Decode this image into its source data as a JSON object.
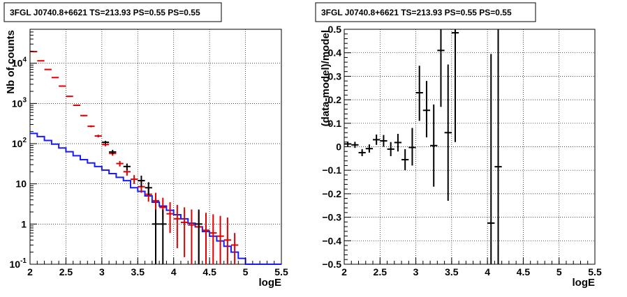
{
  "chart_data": [
    {
      "type": "step-histogram-with-errorbars",
      "title": "3FGL J0740.8+6621 TS=213.93 PS=0.55 PS=0.55",
      "xlabel": "logE",
      "ylabel": "Nb of counts",
      "xlim": [
        2,
        5.5
      ],
      "ylim": [
        0.1,
        70000
      ],
      "yscale": "log",
      "grid": true,
      "x_ticks": [
        "2",
        "2.5",
        "3",
        "3.5",
        "4",
        "4.5",
        "5",
        "5.5"
      ],
      "y_ticks": [
        {
          "v": 0.1,
          "label": "10",
          "exp": "-1"
        },
        {
          "v": 1,
          "label": "1",
          "exp": ""
        },
        {
          "v": 10,
          "label": "10",
          "exp": ""
        },
        {
          "v": 100,
          "label": "10",
          "exp": "2"
        },
        {
          "v": 1000,
          "label": "10",
          "exp": "3"
        },
        {
          "v": 10000,
          "label": "10",
          "exp": "4"
        }
      ],
      "series": [
        {
          "color": "#1a1aff",
          "style": "step",
          "edges": [
            2,
            2.1,
            2.2,
            2.3,
            2.4,
            2.5,
            2.6,
            2.7,
            2.8,
            2.9,
            3.0,
            3.1,
            3.2,
            3.3,
            3.4,
            3.5,
            3.6,
            3.7,
            3.8,
            3.9,
            4.0,
            4.1,
            4.2,
            4.3,
            4.4,
            4.5,
            4.6,
            4.7,
            4.8,
            4.9,
            5.0,
            5.1,
            5.2,
            5.3,
            5.4,
            5.5
          ],
          "values": [
            180,
            150,
            120,
            97,
            78,
            63,
            50,
            40,
            33,
            27,
            22,
            18,
            14.5,
            12,
            8,
            6.5,
            5,
            3.5,
            2.8,
            2.2,
            1.7,
            1.35,
            1.05,
            0.85,
            0.65,
            0.5,
            0.38,
            0.28,
            0.2,
            0.14,
            0.1,
            0.1,
            0.1,
            0.1,
            0.1
          ]
        },
        {
          "color": "#e00000",
          "style": "errorbar",
          "points": [
            {
              "x": 2.05,
              "y": 19500,
              "lo": 19200,
              "hi": 19800
            },
            {
              "x": 2.15,
              "y": 11500,
              "lo": 11300,
              "hi": 11700
            },
            {
              "x": 2.25,
              "y": 7000,
              "lo": 6850,
              "hi": 7150
            },
            {
              "x": 2.35,
              "y": 4400,
              "lo": 4300,
              "hi": 4500
            },
            {
              "x": 2.45,
              "y": 2700,
              "lo": 2620,
              "hi": 2780
            },
            {
              "x": 2.55,
              "y": 1500,
              "lo": 1450,
              "hi": 1550
            },
            {
              "x": 2.65,
              "y": 900,
              "lo": 870,
              "hi": 930
            },
            {
              "x": 2.75,
              "y": 500,
              "lo": 480,
              "hi": 520
            },
            {
              "x": 2.85,
              "y": 270,
              "lo": 255,
              "hi": 285
            },
            {
              "x": 2.95,
              "y": 155,
              "lo": 143,
              "hi": 167
            },
            {
              "x": 3.05,
              "y": 95,
              "lo": 86,
              "hi": 104
            },
            {
              "x": 3.15,
              "y": 57,
              "lo": 50,
              "hi": 64
            },
            {
              "x": 3.25,
              "y": 32,
              "lo": 27,
              "hi": 37
            },
            {
              "x": 3.35,
              "y": 20,
              "lo": 16,
              "hi": 24
            },
            {
              "x": 3.45,
              "y": 13,
              "lo": 10,
              "hi": 16.5
            },
            {
              "x": 3.55,
              "y": 8.5,
              "lo": 6,
              "hi": 11.5
            },
            {
              "x": 3.65,
              "y": 5.5,
              "lo": 3.6,
              "hi": 8
            },
            {
              "x": 3.75,
              "y": 3.8,
              "lo": 2.2,
              "hi": 6
            },
            {
              "x": 3.85,
              "y": 2.6,
              "lo": 1.3,
              "hi": 4.5
            },
            {
              "x": 3.95,
              "y": 1.8,
              "lo": 0.6,
              "hi": 3.5
            },
            {
              "x": 4.05,
              "y": 1.35,
              "lo": 0.25,
              "hi": 3
            },
            {
              "x": 4.15,
              "y": 1.1,
              "lo": 0.15,
              "hi": 2.6
            },
            {
              "x": 4.25,
              "y": 0.95,
              "lo": 0.1,
              "hi": 2.3
            },
            {
              "x": 4.35,
              "y": 0.85,
              "lo": 0.1,
              "hi": 2.1
            },
            {
              "x": 4.45,
              "y": 0.7,
              "lo": 0.1,
              "hi": 1.9
            },
            {
              "x": 4.55,
              "y": 0.6,
              "lo": 0.1,
              "hi": 1.75
            },
            {
              "x": 4.65,
              "y": 0.5,
              "lo": 0.1,
              "hi": 1.6
            },
            {
              "x": 4.75,
              "y": 0.4,
              "lo": 0.1,
              "hi": 1.45
            },
            {
              "x": 4.85,
              "y": 0.3,
              "lo": 0.1,
              "hi": 0.6
            }
          ]
        },
        {
          "color": "#000000",
          "style": "errorbar",
          "points": [
            {
              "x": 3.05,
              "y": 108,
              "lo": 98,
              "hi": 118
            },
            {
              "x": 3.15,
              "y": 62,
              "lo": 55,
              "hi": 70
            },
            {
              "x": 3.35,
              "y": 27,
              "lo": 22,
              "hi": 32
            },
            {
              "x": 3.55,
              "y": 12,
              "lo": 8.5,
              "hi": 16
            },
            {
              "x": 3.65,
              "y": 8,
              "lo": 5.2,
              "hi": 11
            },
            {
              "x": 3.75,
              "y": 1,
              "lo": 0.1,
              "hi": 2.3
            },
            {
              "x": 3.85,
              "y": 1,
              "lo": 0.1,
              "hi": 2.3
            },
            {
              "x": 4.35,
              "y": 1,
              "lo": 0.1,
              "hi": 2.3
            }
          ]
        }
      ]
    },
    {
      "type": "scatter-errorbar",
      "title": "3FGL J0740.8+6621 TS=213.93 PS=0.55 PS=0.55",
      "xlabel": "logE",
      "ylabel": "(data-model)/model",
      "xlim": [
        2,
        5.5
      ],
      "ylim": [
        -0.5,
        0.5
      ],
      "grid": true,
      "x_ticks": [
        "2",
        "2.5",
        "3",
        "3.5",
        "4",
        "4.5",
        "5",
        "5.5"
      ],
      "y_ticks": [
        "−0.5",
        "−0.4",
        "−0.3",
        "−0.2",
        "−0.1",
        "0",
        "0.1",
        "0.2",
        "0.3",
        "0.4",
        "0.5"
      ],
      "series": [
        {
          "color": "#000000",
          "points": [
            {
              "x": 2.05,
              "y": 0.012,
              "lo": 0.002,
              "hi": 0.022
            },
            {
              "x": 2.15,
              "y": 0.008,
              "lo": -0.005,
              "hi": 0.021
            },
            {
              "x": 2.25,
              "y": -0.025,
              "lo": -0.04,
              "hi": -0.01
            },
            {
              "x": 2.35,
              "y": -0.008,
              "lo": -0.025,
              "hi": 0.01
            },
            {
              "x": 2.45,
              "y": 0.03,
              "lo": 0.008,
              "hi": 0.052
            },
            {
              "x": 2.55,
              "y": 0.025,
              "lo": 0.0,
              "hi": 0.05
            },
            {
              "x": 2.65,
              "y": -0.01,
              "lo": -0.04,
              "hi": 0.02
            },
            {
              "x": 2.75,
              "y": 0.018,
              "lo": -0.02,
              "hi": 0.055
            },
            {
              "x": 2.85,
              "y": -0.055,
              "lo": -0.1,
              "hi": -0.01
            },
            {
              "x": 2.95,
              "y": -0.003,
              "lo": -0.08,
              "hi": 0.08
            },
            {
              "x": 3.05,
              "y": 0.23,
              "lo": 0.11,
              "hi": 0.345
            },
            {
              "x": 3.15,
              "y": 0.155,
              "lo": 0.04,
              "hi": 0.28
            },
            {
              "x": 3.25,
              "y": 0.005,
              "lo": -0.17,
              "hi": 0.18
            },
            {
              "x": 3.35,
              "y": 0.41,
              "lo": 0.17,
              "hi": 0.5
            },
            {
              "x": 3.45,
              "y": 0.06,
              "lo": -0.23,
              "hi": 0.35
            },
            {
              "x": 3.55,
              "y": 0.485,
              "lo": 0.02,
              "hi": 0.5
            },
            {
              "x": 4.05,
              "y": -0.325,
              "lo": -0.5,
              "hi": 0.395
            },
            {
              "x": 4.15,
              "y": -0.085,
              "lo": -0.5,
              "hi": 0.5
            }
          ]
        }
      ]
    }
  ]
}
